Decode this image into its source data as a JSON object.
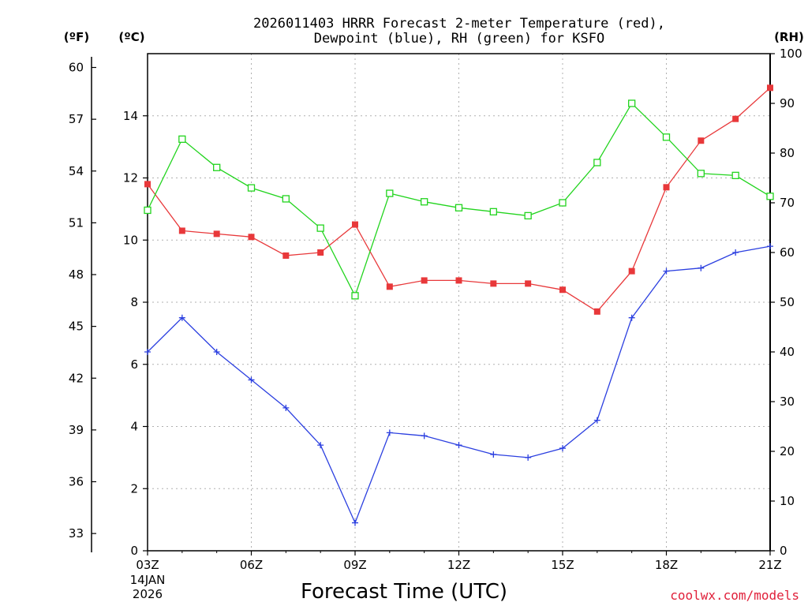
{
  "chart_data": {
    "type": "line",
    "title_lines": [
      "2026011403 HRRR Forecast 2-meter Temperature (red),",
      "Dewpoint (blue), RH (green) for KSFO"
    ],
    "xlabel": "Forecast Time (UTC)",
    "credit": "coolwx.com/models",
    "units": {
      "fahrenheit": "(ºF)",
      "celsius": "(ºC)",
      "rh": "(RH)"
    },
    "x": [
      "03Z",
      "04Z",
      "05Z",
      "06Z",
      "07Z",
      "08Z",
      "09Z",
      "10Z",
      "11Z",
      "12Z",
      "13Z",
      "14Z",
      "15Z",
      "16Z",
      "17Z",
      "18Z",
      "19Z",
      "20Z",
      "21Z"
    ],
    "x_tick_labels": [
      "03Z",
      "06Z",
      "09Z",
      "12Z",
      "15Z",
      "18Z",
      "21Z"
    ],
    "x_date_lines": [
      "14JAN",
      "2026"
    ],
    "y_celsius": {
      "lim": [
        0,
        16
      ],
      "ticks": [
        "0",
        "2",
        "4",
        "6",
        "8",
        "10",
        "12",
        "14"
      ]
    },
    "y_fahrenheit": {
      "lim": [
        32,
        60.8
      ],
      "ticks": [
        "33",
        "36",
        "39",
        "42",
        "45",
        "48",
        "51",
        "54",
        "57",
        "60"
      ]
    },
    "y_rh": {
      "lim": [
        0,
        100
      ],
      "ticks": [
        "0",
        "10",
        "20",
        "30",
        "40",
        "50",
        "60",
        "70",
        "80",
        "90",
        "100"
      ]
    },
    "grid": true,
    "series": [
      {
        "name": "Temperature",
        "axis": "celsius",
        "color": "#e8383a",
        "marker": "filled-square",
        "values": [
          11.8,
          10.3,
          10.2,
          10.1,
          9.5,
          9.6,
          10.5,
          8.5,
          8.7,
          8.7,
          8.6,
          8.6,
          8.4,
          7.7,
          9.0,
          11.7,
          13.2,
          13.9,
          14.9
        ]
      },
      {
        "name": "Dewpoint",
        "axis": "celsius",
        "color": "#2b3fe0",
        "marker": "plus",
        "values": [
          6.4,
          7.5,
          6.4,
          5.5,
          4.6,
          3.4,
          0.9,
          3.8,
          3.7,
          3.4,
          3.1,
          3.0,
          3.3,
          4.2,
          7.5,
          9.0,
          9.1,
          9.6,
          9.8
        ]
      },
      {
        "name": "RH",
        "axis": "rh",
        "color": "#22d41e",
        "marker": "open-square",
        "values": [
          68.5,
          82.8,
          77.1,
          73.0,
          70.8,
          64.9,
          51.3,
          71.9,
          70.2,
          69.0,
          68.2,
          67.4,
          70.0,
          78.1,
          90.0,
          83.2,
          75.9,
          75.5,
          71.3
        ]
      }
    ]
  }
}
